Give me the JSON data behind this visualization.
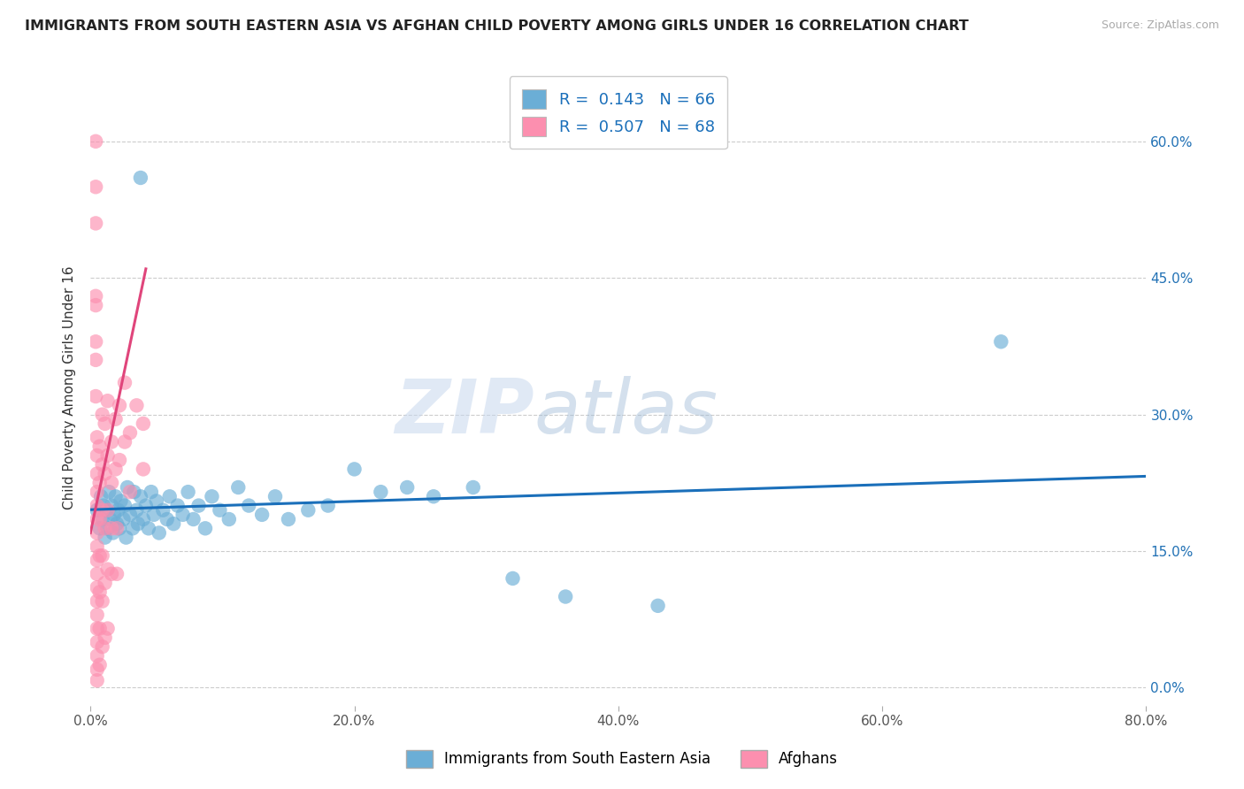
{
  "title": "IMMIGRANTS FROM SOUTH EASTERN ASIA VS AFGHAN CHILD POVERTY AMONG GIRLS UNDER 16 CORRELATION CHART",
  "source": "Source: ZipAtlas.com",
  "ylabel": "Child Poverty Among Girls Under 16",
  "xlim": [
    0.0,
    0.8
  ],
  "ylim": [
    -0.02,
    0.68
  ],
  "yticks": [
    0.0,
    0.15,
    0.3,
    0.45,
    0.6
  ],
  "ytick_labels": [
    "0.0%",
    "15.0%",
    "30.0%",
    "45.0%",
    "60.0%"
  ],
  "xticks": [
    0.0,
    0.2,
    0.4,
    0.6,
    0.8
  ],
  "xtick_labels": [
    "0.0%",
    "20.0%",
    "40.0%",
    "60.0%",
    "80.0%"
  ],
  "blue_color": "#6baed6",
  "pink_color": "#fc8faf",
  "blue_line_color": "#1a6fba",
  "pink_line_color": "#e0457b",
  "R_blue": 0.143,
  "N_blue": 66,
  "R_pink": 0.507,
  "N_pink": 68,
  "watermark_zip": "ZIP",
  "watermark_atlas": "atlas",
  "legend_blue_label": "Immigrants from South Eastern Asia",
  "legend_pink_label": "Afghans",
  "blue_scatter": [
    [
      0.005,
      0.195
    ],
    [
      0.007,
      0.175
    ],
    [
      0.008,
      0.21
    ],
    [
      0.009,
      0.185
    ],
    [
      0.01,
      0.2
    ],
    [
      0.011,
      0.165
    ],
    [
      0.012,
      0.195
    ],
    [
      0.013,
      0.175
    ],
    [
      0.014,
      0.215
    ],
    [
      0.015,
      0.185
    ],
    [
      0.016,
      0.2
    ],
    [
      0.017,
      0.17
    ],
    [
      0.018,
      0.19
    ],
    [
      0.019,
      0.21
    ],
    [
      0.02,
      0.18
    ],
    [
      0.021,
      0.195
    ],
    [
      0.022,
      0.175
    ],
    [
      0.023,
      0.205
    ],
    [
      0.025,
      0.185
    ],
    [
      0.026,
      0.2
    ],
    [
      0.027,
      0.165
    ],
    [
      0.028,
      0.22
    ],
    [
      0.03,
      0.19
    ],
    [
      0.032,
      0.175
    ],
    [
      0.033,
      0.215
    ],
    [
      0.035,
      0.195
    ],
    [
      0.036,
      0.18
    ],
    [
      0.038,
      0.21
    ],
    [
      0.04,
      0.185
    ],
    [
      0.042,
      0.2
    ],
    [
      0.044,
      0.175
    ],
    [
      0.046,
      0.215
    ],
    [
      0.048,
      0.19
    ],
    [
      0.05,
      0.205
    ],
    [
      0.052,
      0.17
    ],
    [
      0.055,
      0.195
    ],
    [
      0.058,
      0.185
    ],
    [
      0.06,
      0.21
    ],
    [
      0.063,
      0.18
    ],
    [
      0.066,
      0.2
    ],
    [
      0.07,
      0.19
    ],
    [
      0.074,
      0.215
    ],
    [
      0.078,
      0.185
    ],
    [
      0.082,
      0.2
    ],
    [
      0.087,
      0.175
    ],
    [
      0.092,
      0.21
    ],
    [
      0.098,
      0.195
    ],
    [
      0.105,
      0.185
    ],
    [
      0.112,
      0.22
    ],
    [
      0.12,
      0.2
    ],
    [
      0.13,
      0.19
    ],
    [
      0.14,
      0.21
    ],
    [
      0.15,
      0.185
    ],
    [
      0.165,
      0.195
    ],
    [
      0.18,
      0.2
    ],
    [
      0.2,
      0.24
    ],
    [
      0.22,
      0.215
    ],
    [
      0.24,
      0.22
    ],
    [
      0.26,
      0.21
    ],
    [
      0.29,
      0.22
    ],
    [
      0.038,
      0.56
    ],
    [
      0.32,
      0.12
    ],
    [
      0.36,
      0.1
    ],
    [
      0.43,
      0.09
    ],
    [
      0.69,
      0.38
    ]
  ],
  "pink_scatter": [
    [
      0.004,
      0.51
    ],
    [
      0.004,
      0.42
    ],
    [
      0.004,
      0.36
    ],
    [
      0.004,
      0.32
    ],
    [
      0.005,
      0.275
    ],
    [
      0.005,
      0.255
    ],
    [
      0.005,
      0.235
    ],
    [
      0.005,
      0.215
    ],
    [
      0.005,
      0.2
    ],
    [
      0.005,
      0.185
    ],
    [
      0.005,
      0.17
    ],
    [
      0.005,
      0.155
    ],
    [
      0.005,
      0.14
    ],
    [
      0.005,
      0.125
    ],
    [
      0.005,
      0.11
    ],
    [
      0.005,
      0.095
    ],
    [
      0.005,
      0.08
    ],
    [
      0.005,
      0.065
    ],
    [
      0.005,
      0.05
    ],
    [
      0.005,
      0.035
    ],
    [
      0.005,
      0.02
    ],
    [
      0.005,
      0.008
    ],
    [
      0.007,
      0.265
    ],
    [
      0.007,
      0.225
    ],
    [
      0.007,
      0.185
    ],
    [
      0.007,
      0.145
    ],
    [
      0.007,
      0.105
    ],
    [
      0.007,
      0.065
    ],
    [
      0.007,
      0.025
    ],
    [
      0.009,
      0.3
    ],
    [
      0.009,
      0.245
    ],
    [
      0.009,
      0.195
    ],
    [
      0.009,
      0.145
    ],
    [
      0.009,
      0.095
    ],
    [
      0.009,
      0.045
    ],
    [
      0.011,
      0.29
    ],
    [
      0.011,
      0.235
    ],
    [
      0.011,
      0.175
    ],
    [
      0.011,
      0.115
    ],
    [
      0.011,
      0.055
    ],
    [
      0.013,
      0.315
    ],
    [
      0.013,
      0.255
    ],
    [
      0.013,
      0.195
    ],
    [
      0.013,
      0.13
    ],
    [
      0.013,
      0.065
    ],
    [
      0.016,
      0.27
    ],
    [
      0.016,
      0.225
    ],
    [
      0.016,
      0.175
    ],
    [
      0.016,
      0.125
    ],
    [
      0.019,
      0.295
    ],
    [
      0.019,
      0.24
    ],
    [
      0.022,
      0.31
    ],
    [
      0.022,
      0.25
    ],
    [
      0.026,
      0.335
    ],
    [
      0.026,
      0.27
    ],
    [
      0.03,
      0.28
    ],
    [
      0.035,
      0.31
    ],
    [
      0.04,
      0.29
    ],
    [
      0.004,
      0.43
    ],
    [
      0.004,
      0.38
    ],
    [
      0.004,
      0.6
    ],
    [
      0.004,
      0.55
    ],
    [
      0.02,
      0.175
    ],
    [
      0.02,
      0.125
    ],
    [
      0.03,
      0.215
    ],
    [
      0.04,
      0.24
    ]
  ]
}
